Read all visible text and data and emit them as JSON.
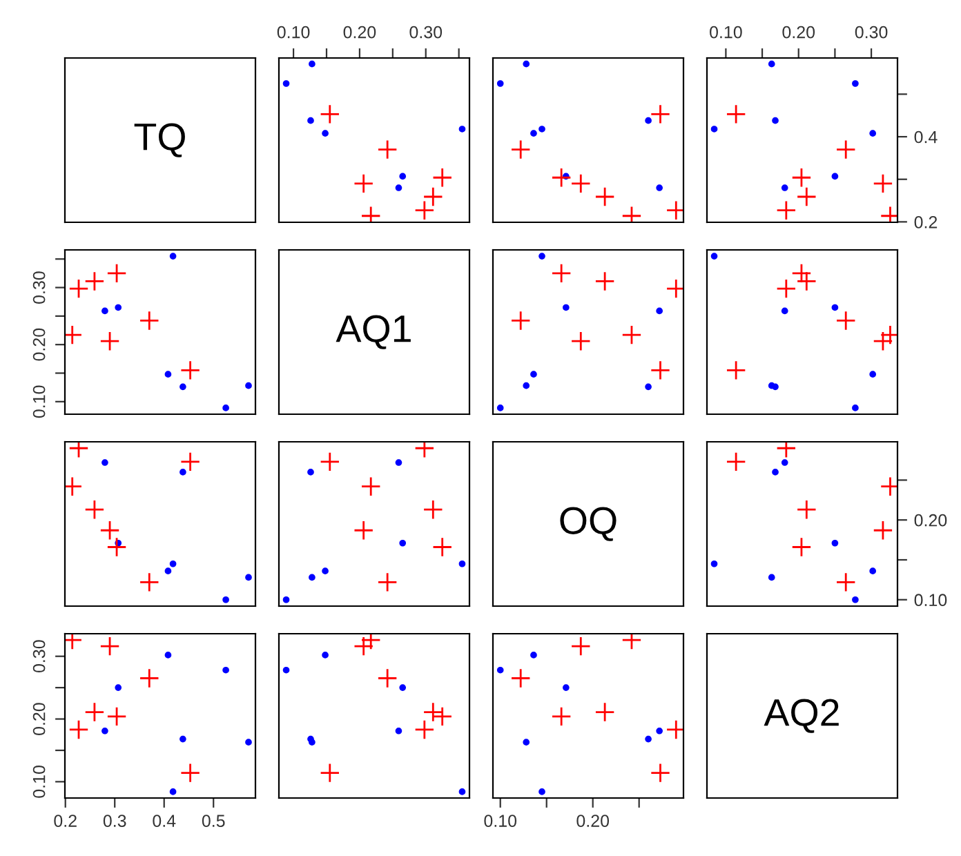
{
  "chart_data": [
    {
      "type": "other",
      "title": "TQ"
    },
    {
      "type": "scatter",
      "xlim": [
        0.078,
        0.366
      ],
      "ylim": [
        0.199,
        0.585
      ],
      "tick_labels": "x",
      "xticks": [
        {
          "value": 0.1,
          "label": "0.10"
        },
        {
          "value": 0.15,
          "label": null
        },
        {
          "value": 0.2,
          "label": "0.20"
        },
        {
          "value": 0.25,
          "label": null
        },
        {
          "value": 0.3,
          "label": "0.30"
        },
        {
          "value": 0.35,
          "label": null
        }
      ],
      "series": [
        {
          "color": "#0000ff",
          "marker": "circle",
          "x": [
            0.265,
            0.148,
            0.089,
            0.259,
            0.126,
            0.128,
            0.355
          ],
          "values": [
            0.307,
            0.408,
            0.525,
            0.28,
            0.438,
            0.571,
            0.418
          ]
        },
        {
          "color": "#ff0000",
          "marker": "cross",
          "x": [
            0.217,
            0.206,
            0.242,
            0.311,
            0.325,
            0.298,
            0.155
          ],
          "values": [
            0.214,
            0.29,
            0.37,
            0.259,
            0.304,
            0.227,
            0.453
          ]
        }
      ]
    },
    {
      "type": "scatter",
      "xlim": [
        0.092,
        0.298
      ],
      "ylim": [
        0.199,
        0.585
      ],
      "tick_labels": false,
      "series": [
        {
          "color": "#0000ff",
          "marker": "circle",
          "x": [
            0.171,
            0.136,
            0.1,
            0.272,
            0.26,
            0.128,
            0.145
          ],
          "values": [
            0.307,
            0.408,
            0.525,
            0.28,
            0.438,
            0.571,
            0.418
          ]
        },
        {
          "color": "#ff0000",
          "marker": "cross",
          "x": [
            0.242,
            0.187,
            0.122,
            0.213,
            0.166,
            0.29,
            0.273
          ],
          "values": [
            0.214,
            0.29,
            0.37,
            0.259,
            0.304,
            0.227,
            0.453
          ]
        }
      ]
    },
    {
      "type": "scatter",
      "xlim": [
        0.074,
        0.336
      ],
      "ylim": [
        0.199,
        0.585
      ],
      "xticks": [
        {
          "value": 0.1,
          "label": "0.10"
        },
        {
          "value": 0.15,
          "label": null
        },
        {
          "value": 0.2,
          "label": "0.20"
        },
        {
          "value": 0.25,
          "label": null
        },
        {
          "value": 0.3,
          "label": "0.30"
        }
      ],
      "yticks": [
        0.2,
        {
          "value": 0.3,
          "label": null
        },
        0.4,
        {
          "value": 0.5,
          "label": null
        }
      ],
      "series": [
        {
          "color": "#0000ff",
          "marker": "circle",
          "x": [
            0.25,
            0.302,
            0.278,
            0.181,
            0.168,
            0.163,
            0.084
          ],
          "values": [
            0.307,
            0.408,
            0.525,
            0.28,
            0.438,
            0.571,
            0.418
          ]
        },
        {
          "color": "#ff0000",
          "marker": "cross",
          "x": [
            0.326,
            0.316,
            0.265,
            0.211,
            0.204,
            0.183,
            0.114
          ],
          "values": [
            0.214,
            0.29,
            0.37,
            0.259,
            0.304,
            0.227,
            0.453
          ]
        }
      ]
    },
    {
      "type": "scatter",
      "xlim": [
        0.199,
        0.585
      ],
      "ylim": [
        0.078,
        0.366
      ],
      "tick_labels": "y",
      "yticks": [
        {
          "value": 0.1,
          "label": "0.10"
        },
        {
          "value": 0.15,
          "label": null
        },
        {
          "value": 0.2,
          "label": "0.20"
        },
        {
          "value": 0.25,
          "label": null
        },
        {
          "value": 0.3,
          "label": "0.30"
        },
        {
          "value": 0.35,
          "label": null
        }
      ],
      "series": [
        {
          "color": "#0000ff",
          "marker": "circle",
          "x": [
            0.307,
            0.408,
            0.525,
            0.28,
            0.438,
            0.571,
            0.418
          ],
          "values": [
            0.265,
            0.148,
            0.089,
            0.259,
            0.126,
            0.128,
            0.355
          ]
        },
        {
          "color": "#ff0000",
          "marker": "cross",
          "x": [
            0.214,
            0.29,
            0.37,
            0.259,
            0.304,
            0.227,
            0.453
          ],
          "values": [
            0.217,
            0.206,
            0.242,
            0.311,
            0.325,
            0.298,
            0.155
          ]
        }
      ]
    },
    {
      "type": "other",
      "title": "AQ1"
    },
    {
      "type": "scatter",
      "xlim": [
        0.092,
        0.298
      ],
      "ylim": [
        0.078,
        0.366
      ],
      "tick_labels": false,
      "series": [
        {
          "color": "#0000ff",
          "marker": "circle",
          "x": [
            0.171,
            0.136,
            0.1,
            0.272,
            0.26,
            0.128,
            0.145
          ],
          "values": [
            0.265,
            0.148,
            0.089,
            0.259,
            0.126,
            0.128,
            0.355
          ]
        },
        {
          "color": "#ff0000",
          "marker": "cross",
          "x": [
            0.242,
            0.187,
            0.122,
            0.213,
            0.166,
            0.29,
            0.273
          ],
          "values": [
            0.217,
            0.206,
            0.242,
            0.311,
            0.325,
            0.298,
            0.155
          ]
        }
      ]
    },
    {
      "type": "scatter",
      "xlim": [
        0.074,
        0.336
      ],
      "ylim": [
        0.078,
        0.366
      ],
      "tick_labels": false,
      "series": [
        {
          "color": "#0000ff",
          "marker": "circle",
          "x": [
            0.25,
            0.302,
            0.278,
            0.181,
            0.168,
            0.163,
            0.084
          ],
          "values": [
            0.265,
            0.148,
            0.089,
            0.259,
            0.126,
            0.128,
            0.355
          ]
        },
        {
          "color": "#ff0000",
          "marker": "cross",
          "x": [
            0.326,
            0.316,
            0.265,
            0.211,
            0.204,
            0.183,
            0.114
          ],
          "values": [
            0.217,
            0.206,
            0.242,
            0.311,
            0.325,
            0.298,
            0.155
          ]
        }
      ]
    },
    {
      "type": "scatter",
      "xlim": [
        0.199,
        0.585
      ],
      "ylim": [
        0.092,
        0.298
      ],
      "tick_labels": false,
      "series": [
        {
          "color": "#0000ff",
          "marker": "circle",
          "x": [
            0.307,
            0.408,
            0.525,
            0.28,
            0.438,
            0.571,
            0.418
          ],
          "values": [
            0.171,
            0.136,
            0.1,
            0.272,
            0.26,
            0.128,
            0.145
          ]
        },
        {
          "color": "#ff0000",
          "marker": "cross",
          "x": [
            0.214,
            0.29,
            0.37,
            0.259,
            0.304,
            0.227,
            0.453
          ],
          "values": [
            0.242,
            0.187,
            0.122,
            0.213,
            0.166,
            0.29,
            0.273
          ]
        }
      ]
    },
    {
      "type": "scatter",
      "xlim": [
        0.078,
        0.366
      ],
      "ylim": [
        0.092,
        0.298
      ],
      "tick_labels": false,
      "series": [
        {
          "color": "#0000ff",
          "marker": "circle",
          "x": [
            0.265,
            0.148,
            0.089,
            0.259,
            0.126,
            0.128,
            0.355
          ],
          "values": [
            0.171,
            0.136,
            0.1,
            0.272,
            0.26,
            0.128,
            0.145
          ]
        },
        {
          "color": "#ff0000",
          "marker": "cross",
          "x": [
            0.217,
            0.206,
            0.242,
            0.311,
            0.325,
            0.298,
            0.155
          ],
          "values": [
            0.242,
            0.187,
            0.122,
            0.213,
            0.166,
            0.29,
            0.273
          ]
        }
      ]
    },
    {
      "type": "other",
      "title": "OQ"
    },
    {
      "type": "scatter",
      "xlim": [
        0.074,
        0.336
      ],
      "ylim": [
        0.092,
        0.298
      ],
      "tick_labels": "y",
      "yticks": [
        {
          "value": 0.1,
          "label": "0.10"
        },
        {
          "value": 0.15,
          "label": null
        },
        {
          "value": 0.2,
          "label": "0.20"
        },
        {
          "value": 0.25,
          "label": null
        }
      ],
      "series": [
        {
          "color": "#0000ff",
          "marker": "circle",
          "x": [
            0.25,
            0.302,
            0.278,
            0.181,
            0.168,
            0.163,
            0.084
          ],
          "values": [
            0.171,
            0.136,
            0.1,
            0.272,
            0.26,
            0.128,
            0.145
          ]
        },
        {
          "color": "#ff0000",
          "marker": "cross",
          "x": [
            0.326,
            0.316,
            0.265,
            0.211,
            0.204,
            0.183,
            0.114
          ],
          "values": [
            0.242,
            0.187,
            0.122,
            0.213,
            0.166,
            0.29,
            0.273
          ]
        }
      ]
    },
    {
      "type": "scatter",
      "xlim": [
        0.199,
        0.585
      ],
      "ylim": [
        0.074,
        0.336
      ],
      "xticks": [
        0.2,
        0.3,
        0.4,
        0.5
      ],
      "yticks": [
        {
          "value": 0.1,
          "label": "0.10"
        },
        {
          "value": 0.15,
          "label": null
        },
        {
          "value": 0.2,
          "label": "0.20"
        },
        {
          "value": 0.25,
          "label": null
        },
        {
          "value": 0.3,
          "label": "0.30"
        }
      ],
      "series": [
        {
          "color": "#0000ff",
          "marker": "circle",
          "x": [
            0.307,
            0.408,
            0.525,
            0.28,
            0.438,
            0.571,
            0.418
          ],
          "values": [
            0.25,
            0.302,
            0.278,
            0.181,
            0.168,
            0.163,
            0.084
          ]
        },
        {
          "color": "#ff0000",
          "marker": "cross",
          "x": [
            0.214,
            0.29,
            0.37,
            0.259,
            0.304,
            0.227,
            0.453
          ],
          "values": [
            0.326,
            0.316,
            0.265,
            0.211,
            0.204,
            0.183,
            0.114
          ]
        }
      ]
    },
    {
      "type": "scatter",
      "xlim": [
        0.078,
        0.366
      ],
      "ylim": [
        0.074,
        0.336
      ],
      "tick_labels": false,
      "series": [
        {
          "color": "#0000ff",
          "marker": "circle",
          "x": [
            0.265,
            0.148,
            0.089,
            0.259,
            0.126,
            0.128,
            0.355
          ],
          "values": [
            0.25,
            0.302,
            0.278,
            0.181,
            0.168,
            0.163,
            0.084
          ]
        },
        {
          "color": "#ff0000",
          "marker": "cross",
          "x": [
            0.217,
            0.206,
            0.242,
            0.311,
            0.325,
            0.298,
            0.155
          ],
          "values": [
            0.326,
            0.316,
            0.265,
            0.211,
            0.204,
            0.183,
            0.114
          ]
        }
      ]
    },
    {
      "type": "scatter",
      "xlim": [
        0.092,
        0.298
      ],
      "ylim": [
        0.074,
        0.336
      ],
      "tick_labels": "x",
      "xticks": [
        {
          "value": 0.1,
          "label": "0.10"
        },
        {
          "value": 0.15,
          "label": null
        },
        {
          "value": 0.2,
          "label": "0.20"
        },
        {
          "value": 0.25,
          "label": null
        }
      ],
      "series": [
        {
          "color": "#0000ff",
          "marker": "circle",
          "x": [
            0.171,
            0.136,
            0.1,
            0.272,
            0.26,
            0.128,
            0.145
          ],
          "values": [
            0.25,
            0.302,
            0.278,
            0.181,
            0.168,
            0.163,
            0.084
          ]
        },
        {
          "color": "#ff0000",
          "marker": "cross",
          "x": [
            0.242,
            0.187,
            0.122,
            0.213,
            0.166,
            0.29,
            0.273
          ],
          "values": [
            0.326,
            0.316,
            0.265,
            0.211,
            0.204,
            0.183,
            0.114
          ]
        }
      ]
    },
    {
      "type": "other",
      "title": "AQ2"
    }
  ]
}
